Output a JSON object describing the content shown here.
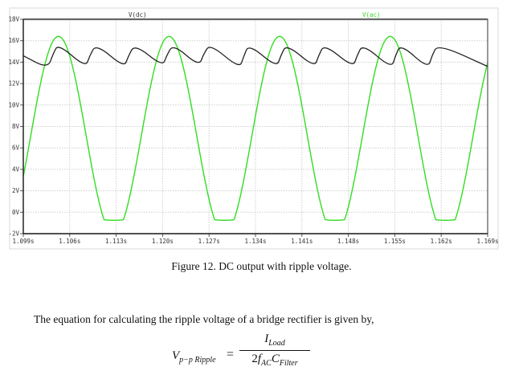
{
  "figure": {
    "caption": "Figure 12. DC output with ripple voltage."
  },
  "body": {
    "paragraph": "The equation for calculating the ripple voltage of a bridge rectifier is given by,"
  },
  "equation": {
    "lhs_main": "V",
    "lhs_sub": "p−p Ripple",
    "equals": "=",
    "num_main": "I",
    "num_sub": "Load",
    "den_coef": "2",
    "den_f": "f",
    "den_f_sub": "AC",
    "den_c": "C",
    "den_c_sub": "Filter"
  },
  "chart_data": {
    "type": "line",
    "title": "",
    "xlabel": "",
    "ylabel": "",
    "xlim": [
      1.099,
      1.169
    ],
    "ylim": [
      -2,
      18
    ],
    "grid": true,
    "legend_position": "top",
    "x_ticks": [
      "1.099s",
      "1.106s",
      "1.113s",
      "1.120s",
      "1.127s",
      "1.134s",
      "1.141s",
      "1.148s",
      "1.155s",
      "1.162s",
      "1.169s"
    ],
    "y_ticks": [
      "18V",
      "16V",
      "14V",
      "12V",
      "10V",
      "8V",
      "6V",
      "4V",
      "2V",
      "0V",
      "-2V"
    ],
    "series": [
      {
        "name": "V(dc)",
        "color": "#222222",
        "points": [
          [
            1.099,
            14.6
          ],
          [
            1.1027,
            13.4
          ],
          [
            1.1035,
            14.8
          ],
          [
            1.1043,
            15.7
          ],
          [
            1.1084,
            13.5
          ],
          [
            1.109,
            14.6
          ],
          [
            1.11,
            15.7
          ],
          [
            1.1142,
            13.5
          ],
          [
            1.1148,
            14.5
          ],
          [
            1.1158,
            15.7
          ],
          [
            1.12,
            13.6
          ],
          [
            1.1206,
            14.6
          ],
          [
            1.1216,
            15.7
          ],
          [
            1.1255,
            13.6
          ],
          [
            1.1262,
            14.8
          ],
          [
            1.1272,
            15.7
          ],
          [
            1.1316,
            13.4
          ],
          [
            1.1322,
            14.5
          ],
          [
            1.133,
            15.7
          ],
          [
            1.1372,
            13.5
          ],
          [
            1.1378,
            14.6
          ],
          [
            1.1387,
            15.7
          ],
          [
            1.1429,
            13.5
          ],
          [
            1.1435,
            14.6
          ],
          [
            1.1444,
            15.7
          ],
          [
            1.1487,
            13.5
          ],
          [
            1.1493,
            14.6
          ],
          [
            1.1502,
            15.7
          ],
          [
            1.1545,
            13.4
          ],
          [
            1.1551,
            14.6
          ],
          [
            1.1559,
            15.7
          ],
          [
            1.16,
            13.4
          ],
          [
            1.1606,
            14.6
          ],
          [
            1.1615,
            15.7
          ],
          [
            1.169,
            13.6
          ]
        ]
      },
      {
        "name": "V(ac)",
        "color": "#33dd22",
        "period_s": 0.01667,
        "peak_v": 16.4,
        "min_v": -0.7,
        "first_peak_s": 1.1043,
        "start_v": 4.5,
        "end_v": 13.0
      }
    ]
  }
}
